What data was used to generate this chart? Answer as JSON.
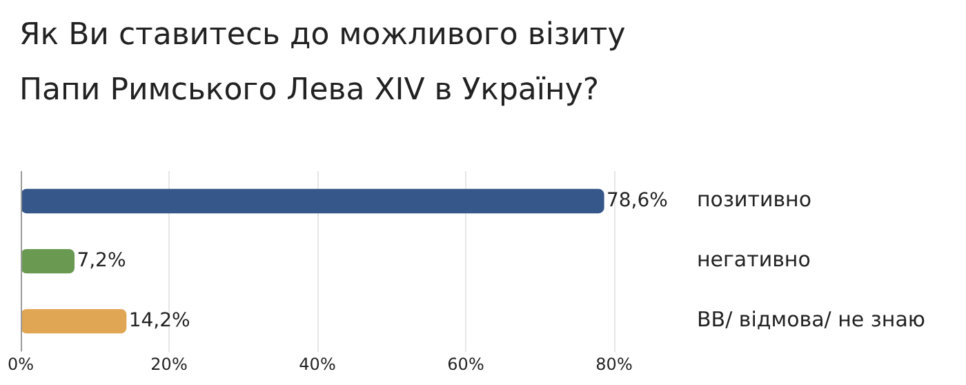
{
  "chart_data": {
    "type": "bar",
    "orientation": "horizontal",
    "title": "Як Ви ставитесь до можливого візиту Папи Римського Лева XIV в Україну?",
    "categories": [
      "позитивно",
      "негативно",
      "ВВ/ відмова/ не знаю"
    ],
    "values": [
      78.6,
      7.2,
      14.2
    ],
    "colors": [
      "#36578a",
      "#6a9a52",
      "#e0a653"
    ],
    "value_labels": [
      "78,6%",
      "7,2%",
      "14,2%"
    ],
    "xlim": [
      0,
      80
    ],
    "xticks": [
      {
        "value": 0,
        "label": "0%"
      },
      {
        "value": 20,
        "label": "20%"
      },
      {
        "value": 40,
        "label": "40%"
      },
      {
        "value": 60,
        "label": "60%"
      },
      {
        "value": 80,
        "label": "80%"
      }
    ],
    "grid": "x",
    "legend": false
  }
}
